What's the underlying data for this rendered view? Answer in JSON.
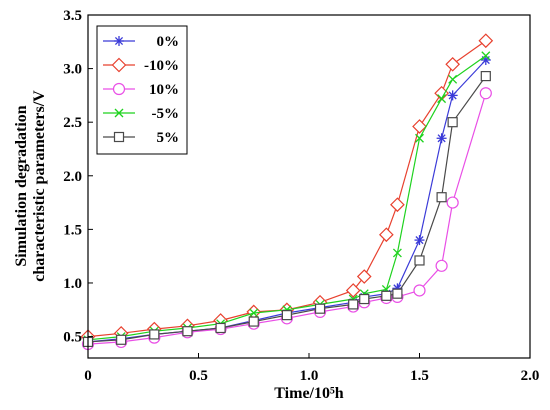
{
  "chart_data": {
    "type": "line",
    "title": "",
    "xlabel": "Time/10⁵h",
    "ylabel_lines": [
      "Simulation degradation",
      "characteristic parameters/V"
    ],
    "xlim": [
      0,
      2.0
    ],
    "ylim": [
      0.3,
      3.5
    ],
    "xticks": [
      0,
      0.5,
      1.0,
      1.5,
      2.0
    ],
    "xtick_labels": [
      "0",
      "0.5",
      "1.0",
      "1.5",
      "2.0"
    ],
    "yticks": [
      0.5,
      1.0,
      1.5,
      2.0,
      2.5,
      3.0,
      3.5
    ],
    "ytick_labels": [
      "0.5",
      "1.0",
      "1.5",
      "2.0",
      "2.5",
      "3.0",
      "3.5"
    ],
    "grid": false,
    "legend_position": "top-left",
    "series": [
      {
        "name": "0%",
        "color": "#3b3bd8",
        "marker": "star",
        "x": [
          0,
          0.15,
          0.3,
          0.45,
          0.6,
          0.75,
          0.9,
          1.05,
          1.2,
          1.25,
          1.35,
          1.4,
          1.5,
          1.6,
          1.65,
          1.8
        ],
        "y": [
          0.45,
          0.48,
          0.52,
          0.55,
          0.58,
          0.65,
          0.72,
          0.77,
          0.82,
          0.87,
          0.9,
          0.95,
          1.4,
          2.35,
          2.75,
          3.08
        ]
      },
      {
        "name": "-10%",
        "color": "#e8412f",
        "marker": "diamond",
        "x": [
          0,
          0.15,
          0.3,
          0.45,
          0.6,
          0.75,
          0.9,
          1.05,
          1.2,
          1.25,
          1.35,
          1.4,
          1.5,
          1.6,
          1.65,
          1.8
        ],
        "y": [
          0.5,
          0.53,
          0.57,
          0.6,
          0.65,
          0.73,
          0.75,
          0.82,
          0.93,
          1.06,
          1.45,
          1.73,
          2.46,
          2.77,
          3.04,
          3.26
        ]
      },
      {
        "name": "10%",
        "color": "#e94fe6",
        "marker": "circle",
        "x": [
          0,
          0.15,
          0.3,
          0.45,
          0.6,
          0.75,
          0.9,
          1.05,
          1.2,
          1.25,
          1.35,
          1.4,
          1.5,
          1.6,
          1.65,
          1.8
        ],
        "y": [
          0.43,
          0.45,
          0.49,
          0.54,
          0.57,
          0.62,
          0.67,
          0.73,
          0.78,
          0.82,
          0.86,
          0.87,
          0.93,
          1.16,
          1.75,
          2.77
        ]
      },
      {
        "name": "-5%",
        "color": "#1ed21e",
        "marker": "x",
        "x": [
          0,
          0.15,
          0.3,
          0.45,
          0.6,
          0.75,
          0.9,
          1.05,
          1.2,
          1.25,
          1.35,
          1.4,
          1.5,
          1.6,
          1.65,
          1.8
        ],
        "y": [
          0.47,
          0.5,
          0.55,
          0.58,
          0.62,
          0.72,
          0.75,
          0.8,
          0.85,
          0.9,
          0.94,
          1.28,
          2.35,
          2.72,
          2.9,
          3.12
        ]
      },
      {
        "name": "5%",
        "color": "#4a4a4a",
        "marker": "square",
        "x": [
          0,
          0.15,
          0.3,
          0.45,
          0.6,
          0.75,
          0.9,
          1.05,
          1.2,
          1.25,
          1.35,
          1.4,
          1.5,
          1.6,
          1.65,
          1.8
        ],
        "y": [
          0.45,
          0.47,
          0.52,
          0.55,
          0.58,
          0.64,
          0.7,
          0.76,
          0.8,
          0.85,
          0.88,
          0.9,
          1.21,
          1.8,
          2.5,
          2.93
        ]
      }
    ]
  }
}
